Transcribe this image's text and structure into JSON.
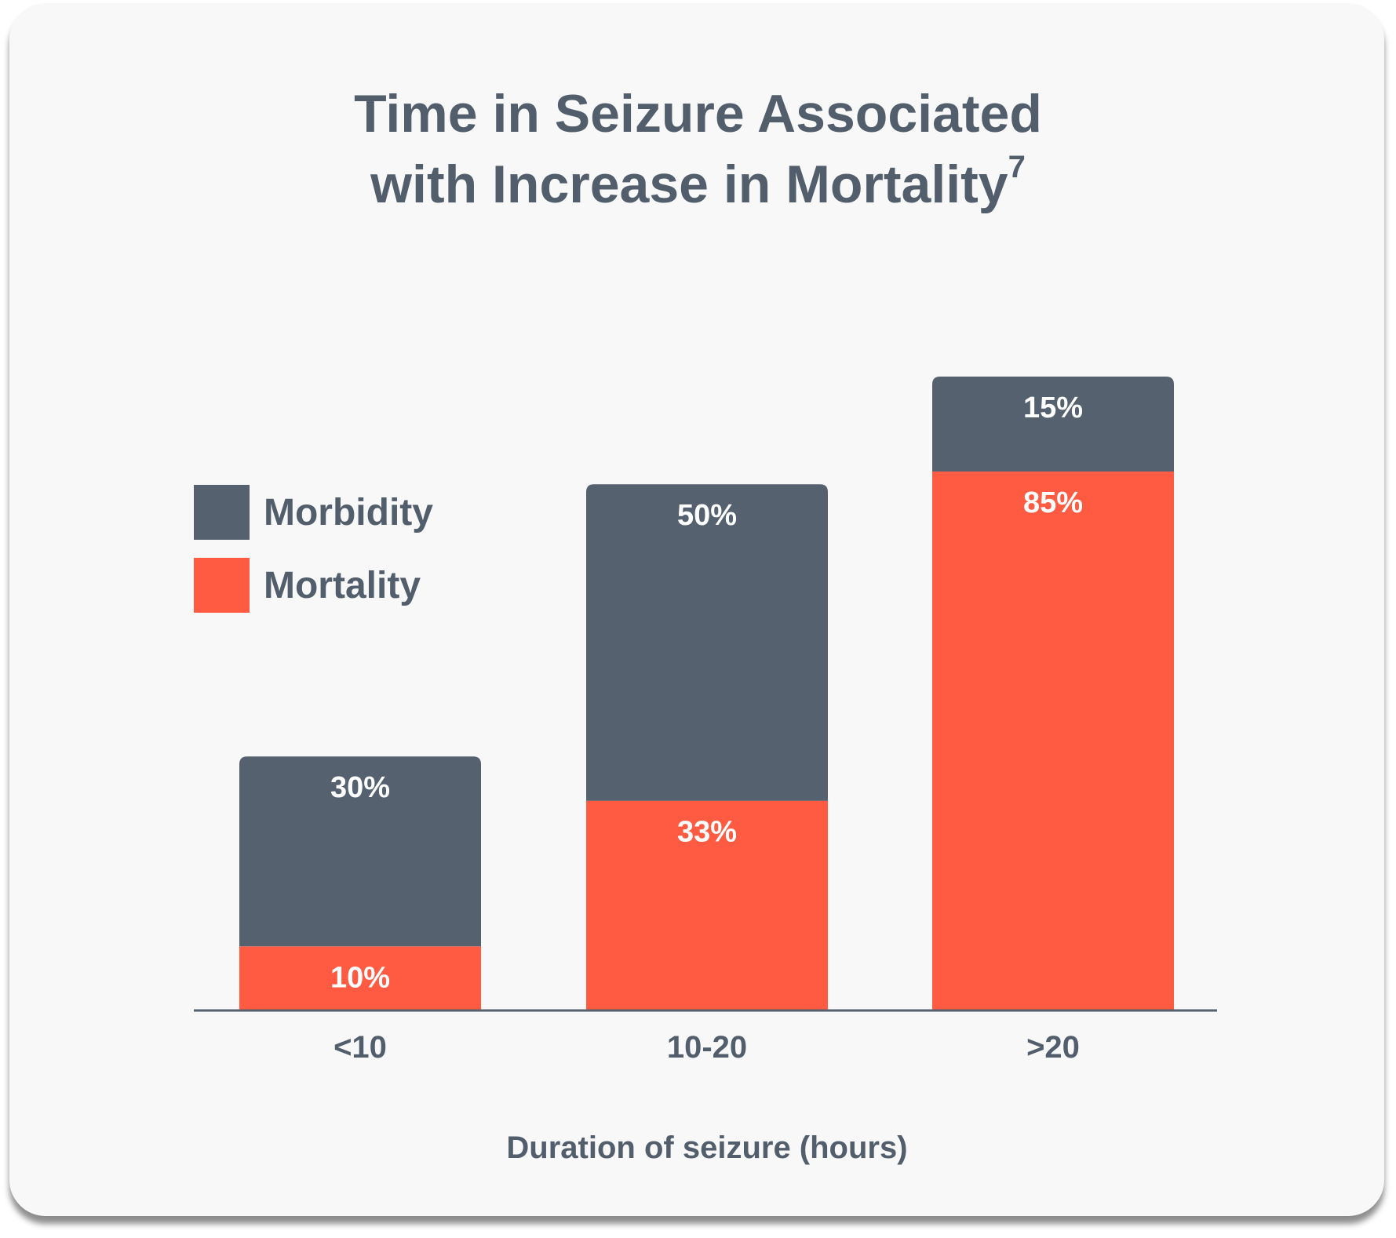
{
  "chart_data": {
    "type": "bar",
    "stacked": true,
    "title_line1": "Time in Seizure Associated",
    "title_line2": "with Increase in Mortality",
    "title_superscript": "7",
    "xlabel": "Duration of seizure (hours)",
    "ylabel": "",
    "categories": [
      "<10",
      "10-20",
      ">20"
    ],
    "series": [
      {
        "name": "Mortality",
        "color": "#ff5b42",
        "values": [
          10,
          33,
          85
        ],
        "labels": [
          "10%",
          "33%",
          "85%"
        ]
      },
      {
        "name": "Morbidity",
        "color": "#56616f",
        "values": [
          30,
          50,
          15
        ],
        "labels": [
          "30%",
          "50%",
          "15%"
        ]
      }
    ],
    "legend_order": [
      "Morbidity",
      "Mortality"
    ],
    "legend_position": "left",
    "ylim": [
      0,
      100
    ],
    "grid": false
  },
  "colors": {
    "text": "#525e6c",
    "label_text": "#ffffff",
    "axis": "#56616f",
    "background": "#f8f8f9"
  }
}
